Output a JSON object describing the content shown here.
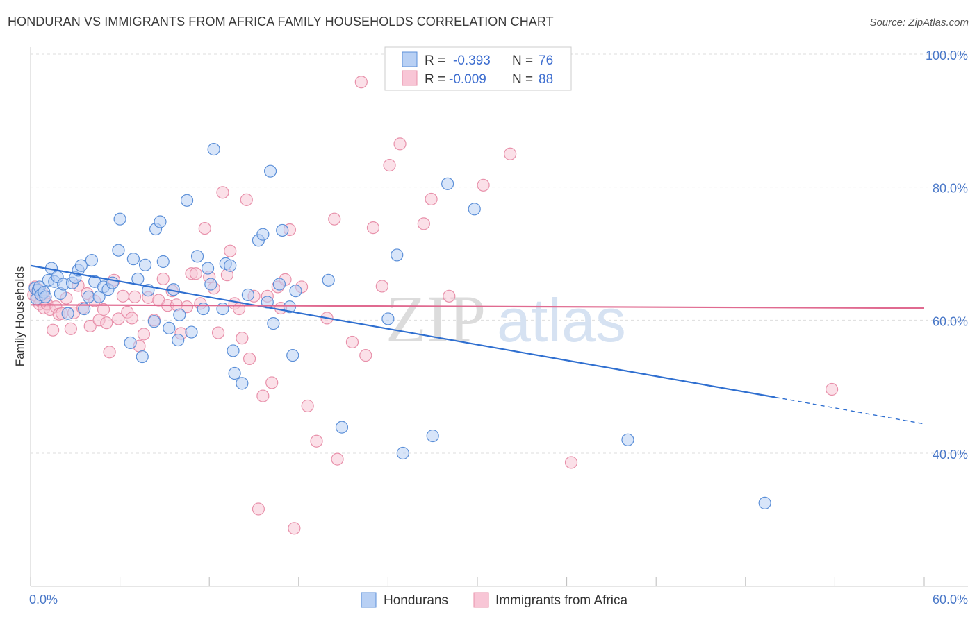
{
  "header": {
    "title": "HONDURAN VS IMMIGRANTS FROM AFRICA FAMILY HOUSEHOLDS CORRELATION CHART",
    "source": "Source: ZipAtlas.com"
  },
  "colors": {
    "hondurans_fill": "#b8d0f4",
    "hondurans_stroke": "#5b8fd8",
    "hondurans_line": "#2f6fd0",
    "africa_fill": "#f8c6d6",
    "africa_stroke": "#e890aa",
    "africa_line": "#e06a90",
    "tick_text": "#4a78c8",
    "grid": "#dddddd"
  },
  "legend": {
    "rows": [
      {
        "r_label": "R =",
        "r_value": "-0.393",
        "n_label": "N =",
        "n_value": "76"
      },
      {
        "r_label": "R =",
        "r_value": "-0.009",
        "n_label": "N =",
        "n_value": "88"
      }
    ]
  },
  "watermark": {
    "part1": "ZIP",
    "part2": "atlas"
  },
  "chart_data": {
    "type": "scatter",
    "title": "HONDURAN VS IMMIGRANTS FROM AFRICA FAMILY HOUSEHOLDS CORRELATION CHART",
    "xlabel": "",
    "ylabel": "Family Households",
    "xlim": [
      0,
      60
    ],
    "ylim": [
      20,
      103
    ],
    "x_tick_labels": [
      "0.0%",
      "60.0%"
    ],
    "y_ticks": [
      40,
      60,
      80,
      100
    ],
    "y_tick_labels": [
      "40.0%",
      "60.0%",
      "80.0%",
      "100.0%"
    ],
    "grid": true,
    "legend_position": "bottom",
    "series": [
      {
        "name": "Hondurans",
        "r": -0.393,
        "n": 76,
        "trend": {
          "x0": 0,
          "y0": 68.2,
          "x1": 50,
          "y1": 48.4,
          "dashed_to_x": 60,
          "dashed_to_y": 44.4
        },
        "points": [
          [
            0.3,
            64.8
          ],
          [
            0.4,
            63.2
          ],
          [
            0.5,
            64.5
          ],
          [
            0.6,
            65.0
          ],
          [
            0.7,
            63.8
          ],
          [
            0.9,
            64.2
          ],
          [
            1.0,
            63.5
          ],
          [
            1.2,
            66.0
          ],
          [
            1.4,
            67.8
          ],
          [
            1.6,
            65.8
          ],
          [
            1.8,
            66.5
          ],
          [
            2.0,
            64.0
          ],
          [
            2.2,
            65.4
          ],
          [
            2.5,
            61.0
          ],
          [
            2.8,
            65.6
          ],
          [
            3.0,
            66.4
          ],
          [
            3.2,
            67.5
          ],
          [
            3.4,
            68.2
          ],
          [
            3.6,
            61.7
          ],
          [
            3.9,
            63.5
          ],
          [
            4.1,
            69.0
          ],
          [
            4.3,
            65.8
          ],
          [
            4.6,
            63.5
          ],
          [
            4.9,
            65.0
          ],
          [
            5.2,
            64.6
          ],
          [
            5.5,
            65.6
          ],
          [
            5.9,
            70.5
          ],
          [
            6.0,
            75.2
          ],
          [
            6.7,
            56.6
          ],
          [
            6.9,
            69.2
          ],
          [
            7.2,
            66.2
          ],
          [
            7.5,
            54.5
          ],
          [
            7.7,
            68.3
          ],
          [
            7.9,
            64.5
          ],
          [
            8.3,
            59.8
          ],
          [
            8.4,
            73.7
          ],
          [
            8.7,
            74.8
          ],
          [
            8.9,
            68.8
          ],
          [
            9.3,
            58.8
          ],
          [
            9.6,
            64.6
          ],
          [
            9.9,
            57.0
          ],
          [
            10.0,
            60.8
          ],
          [
            10.5,
            78.0
          ],
          [
            10.8,
            58.2
          ],
          [
            11.2,
            69.6
          ],
          [
            11.6,
            61.7
          ],
          [
            11.9,
            67.8
          ],
          [
            12.1,
            65.4
          ],
          [
            12.3,
            85.7
          ],
          [
            12.9,
            61.7
          ],
          [
            13.1,
            68.5
          ],
          [
            13.4,
            68.2
          ],
          [
            13.6,
            55.4
          ],
          [
            13.7,
            52.0
          ],
          [
            14.2,
            50.5
          ],
          [
            14.6,
            63.8
          ],
          [
            15.3,
            72.0
          ],
          [
            15.6,
            72.9
          ],
          [
            15.9,
            62.7
          ],
          [
            16.1,
            82.4
          ],
          [
            16.3,
            59.5
          ],
          [
            16.7,
            65.4
          ],
          [
            16.9,
            73.5
          ],
          [
            17.4,
            62.0
          ],
          [
            17.6,
            54.7
          ],
          [
            17.8,
            64.4
          ],
          [
            20.0,
            66.0
          ],
          [
            20.9,
            43.9
          ],
          [
            24.0,
            60.2
          ],
          [
            24.6,
            69.8
          ],
          [
            25.0,
            40.0
          ],
          [
            27.0,
            42.6
          ],
          [
            28.0,
            80.5
          ],
          [
            29.8,
            76.7
          ],
          [
            40.1,
            42.0
          ],
          [
            49.3,
            32.5
          ]
        ]
      },
      {
        "name": "Immigrants from Africa",
        "r": -0.009,
        "n": 88,
        "trend": {
          "x0": 0,
          "y0": 62.3,
          "x1": 60,
          "y1": 61.8
        },
        "points": [
          [
            0.2,
            63.8
          ],
          [
            0.3,
            65.0
          ],
          [
            0.4,
            63.6
          ],
          [
            0.5,
            64.6
          ],
          [
            0.6,
            62.4
          ],
          [
            0.7,
            62.8
          ],
          [
            0.8,
            64.0
          ],
          [
            0.9,
            61.8
          ],
          [
            1.0,
            62.9
          ],
          [
            1.1,
            62.4
          ],
          [
            1.3,
            61.6
          ],
          [
            1.5,
            58.5
          ],
          [
            1.7,
            62.0
          ],
          [
            1.9,
            60.9
          ],
          [
            2.1,
            61.0
          ],
          [
            2.4,
            63.3
          ],
          [
            2.7,
            58.7
          ],
          [
            2.9,
            61.1
          ],
          [
            3.2,
            65.2
          ],
          [
            3.5,
            61.8
          ],
          [
            3.8,
            64.0
          ],
          [
            4.0,
            59.1
          ],
          [
            4.3,
            62.9
          ],
          [
            4.6,
            60.0
          ],
          [
            4.9,
            61.6
          ],
          [
            5.1,
            59.6
          ],
          [
            5.3,
            55.2
          ],
          [
            5.6,
            66.0
          ],
          [
            5.9,
            60.2
          ],
          [
            6.2,
            63.6
          ],
          [
            6.5,
            61.2
          ],
          [
            6.8,
            60.3
          ],
          [
            7.0,
            63.5
          ],
          [
            7.3,
            56.1
          ],
          [
            7.6,
            57.9
          ],
          [
            7.9,
            63.4
          ],
          [
            8.3,
            60.0
          ],
          [
            8.6,
            63.0
          ],
          [
            8.9,
            66.2
          ],
          [
            9.2,
            62.2
          ],
          [
            9.5,
            64.4
          ],
          [
            9.8,
            62.3
          ],
          [
            10.1,
            58.0
          ],
          [
            10.5,
            62.0
          ],
          [
            10.8,
            67.0
          ],
          [
            11.1,
            67.0
          ],
          [
            11.4,
            62.5
          ],
          [
            11.7,
            73.8
          ],
          [
            12.0,
            66.5
          ],
          [
            12.3,
            64.8
          ],
          [
            12.6,
            58.1
          ],
          [
            12.9,
            79.2
          ],
          [
            13.2,
            66.8
          ],
          [
            13.4,
            70.4
          ],
          [
            13.7,
            62.5
          ],
          [
            14.0,
            61.7
          ],
          [
            14.2,
            57.3
          ],
          [
            14.5,
            78.1
          ],
          [
            14.7,
            54.2
          ],
          [
            15.0,
            63.6
          ],
          [
            15.3,
            31.6
          ],
          [
            15.6,
            48.6
          ],
          [
            15.9,
            63.6
          ],
          [
            16.2,
            50.6
          ],
          [
            16.6,
            65.0
          ],
          [
            16.8,
            61.8
          ],
          [
            17.1,
            66.1
          ],
          [
            17.4,
            73.6
          ],
          [
            17.7,
            28.7
          ],
          [
            18.2,
            65.0
          ],
          [
            18.6,
            47.1
          ],
          [
            19.2,
            41.8
          ],
          [
            19.9,
            60.3
          ],
          [
            20.4,
            75.2
          ],
          [
            20.6,
            39.1
          ],
          [
            21.6,
            56.7
          ],
          [
            22.2,
            95.8
          ],
          [
            22.5,
            54.7
          ],
          [
            23.0,
            73.9
          ],
          [
            23.6,
            65.1
          ],
          [
            24.1,
            83.3
          ],
          [
            24.8,
            86.5
          ],
          [
            26.4,
            74.5
          ],
          [
            26.9,
            78.2
          ],
          [
            28.1,
            63.6
          ],
          [
            30.4,
            80.3
          ],
          [
            32.2,
            85.0
          ],
          [
            36.3,
            38.6
          ],
          [
            53.8,
            49.6
          ]
        ]
      }
    ]
  }
}
